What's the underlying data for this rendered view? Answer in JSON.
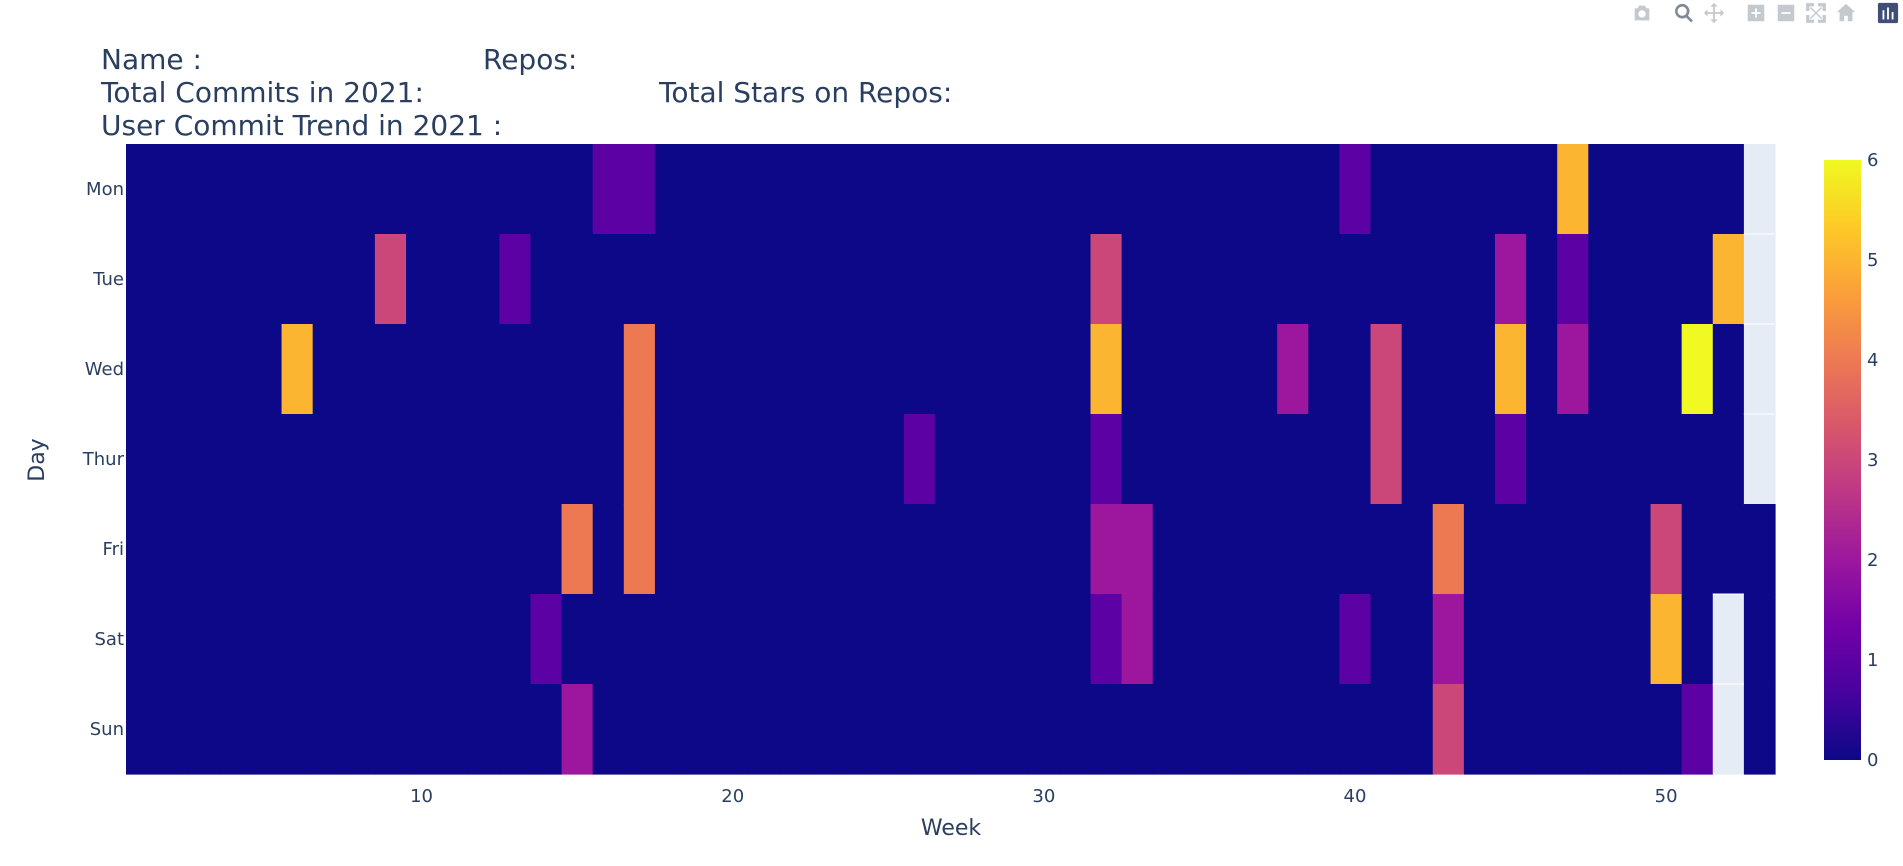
{
  "header": {
    "name_label": "Name :",
    "repos_label": "Repos:",
    "commits_label": "Total Commits in 2021:",
    "stars_label": "Total Stars on Repos:",
    "trend_label": "User Commit Trend in 2021 :"
  },
  "modebar": {
    "icons": [
      "camera-icon",
      "zoom-icon",
      "pan-icon",
      "zoom-in-icon",
      "zoom-out-icon",
      "autoscale-icon",
      "reset-axes-icon",
      "plotly-logo-icon"
    ]
  },
  "colors": {
    "background": "#ffffff",
    "missing_cell": "#e5ecf6",
    "colorscale": [
      "#0d0887",
      "#46039f",
      "#7201a8",
      "#9c179e",
      "#bd3786",
      "#d8576b",
      "#ed7953",
      "#fb9f3a",
      "#fdca26",
      "#f0f921"
    ]
  },
  "chart_data": {
    "type": "heatmap",
    "xlabel": "Week",
    "ylabel": "Day",
    "x_range": [
      0.5,
      53.5
    ],
    "x_ticks": [
      10,
      20,
      30,
      40,
      50
    ],
    "x_tick_labels": [
      "10",
      "20",
      "30",
      "40",
      "50"
    ],
    "y_categories": [
      "Mon",
      "Tue",
      "Wed",
      "Thur",
      "Fri",
      "Sat",
      "Sun"
    ],
    "colorbar": {
      "min": 0,
      "max": 6,
      "ticks": [
        0,
        1,
        2,
        3,
        4,
        5,
        6
      ],
      "tick_labels": [
        "0",
        "1",
        "2",
        "3",
        "4",
        "5",
        "6"
      ]
    },
    "weeks": 53,
    "default_value": 0,
    "cells": [
      {
        "week": 16,
        "day": "Mon",
        "value": 1
      },
      {
        "week": 17,
        "day": "Mon",
        "value": 1
      },
      {
        "week": 40,
        "day": "Mon",
        "value": 1
      },
      {
        "week": 47,
        "day": "Mon",
        "value": 5
      },
      {
        "week": 9,
        "day": "Tue",
        "value": 3
      },
      {
        "week": 13,
        "day": "Tue",
        "value": 1
      },
      {
        "week": 32,
        "day": "Tue",
        "value": 3
      },
      {
        "week": 45,
        "day": "Tue",
        "value": 2
      },
      {
        "week": 47,
        "day": "Tue",
        "value": 1
      },
      {
        "week": 52,
        "day": "Tue",
        "value": 5
      },
      {
        "week": 6,
        "day": "Wed",
        "value": 5
      },
      {
        "week": 17,
        "day": "Wed",
        "value": 4
      },
      {
        "week": 32,
        "day": "Wed",
        "value": 5
      },
      {
        "week": 38,
        "day": "Wed",
        "value": 2
      },
      {
        "week": 41,
        "day": "Wed",
        "value": 3
      },
      {
        "week": 45,
        "day": "Wed",
        "value": 5
      },
      {
        "week": 47,
        "day": "Wed",
        "value": 2
      },
      {
        "week": 51,
        "day": "Wed",
        "value": 6
      },
      {
        "week": 17,
        "day": "Thur",
        "value": 4
      },
      {
        "week": 26,
        "day": "Thur",
        "value": 1
      },
      {
        "week": 32,
        "day": "Thur",
        "value": 1
      },
      {
        "week": 41,
        "day": "Thur",
        "value": 3
      },
      {
        "week": 45,
        "day": "Thur",
        "value": 1
      },
      {
        "week": 15,
        "day": "Fri",
        "value": 4
      },
      {
        "week": 17,
        "day": "Fri",
        "value": 4
      },
      {
        "week": 32,
        "day": "Fri",
        "value": 2
      },
      {
        "week": 33,
        "day": "Fri",
        "value": 2
      },
      {
        "week": 43,
        "day": "Fri",
        "value": 4
      },
      {
        "week": 50,
        "day": "Fri",
        "value": 3
      },
      {
        "week": 14,
        "day": "Sat",
        "value": 1
      },
      {
        "week": 32,
        "day": "Sat",
        "value": 1
      },
      {
        "week": 33,
        "day": "Sat",
        "value": 2
      },
      {
        "week": 40,
        "day": "Sat",
        "value": 1
      },
      {
        "week": 43,
        "day": "Sat",
        "value": 2
      },
      {
        "week": 50,
        "day": "Sat",
        "value": 5
      },
      {
        "week": 15,
        "day": "Sun",
        "value": 2
      },
      {
        "week": 43,
        "day": "Sun",
        "value": 3
      },
      {
        "week": 51,
        "day": "Sun",
        "value": 1
      }
    ],
    "missing_cells": [
      {
        "week": 53,
        "day": "Mon"
      },
      {
        "week": 53,
        "day": "Tue"
      },
      {
        "week": 53,
        "day": "Wed"
      },
      {
        "week": 53,
        "day": "Thur"
      },
      {
        "week": 52,
        "day": "Sat"
      },
      {
        "week": 52,
        "day": "Sun"
      }
    ]
  }
}
